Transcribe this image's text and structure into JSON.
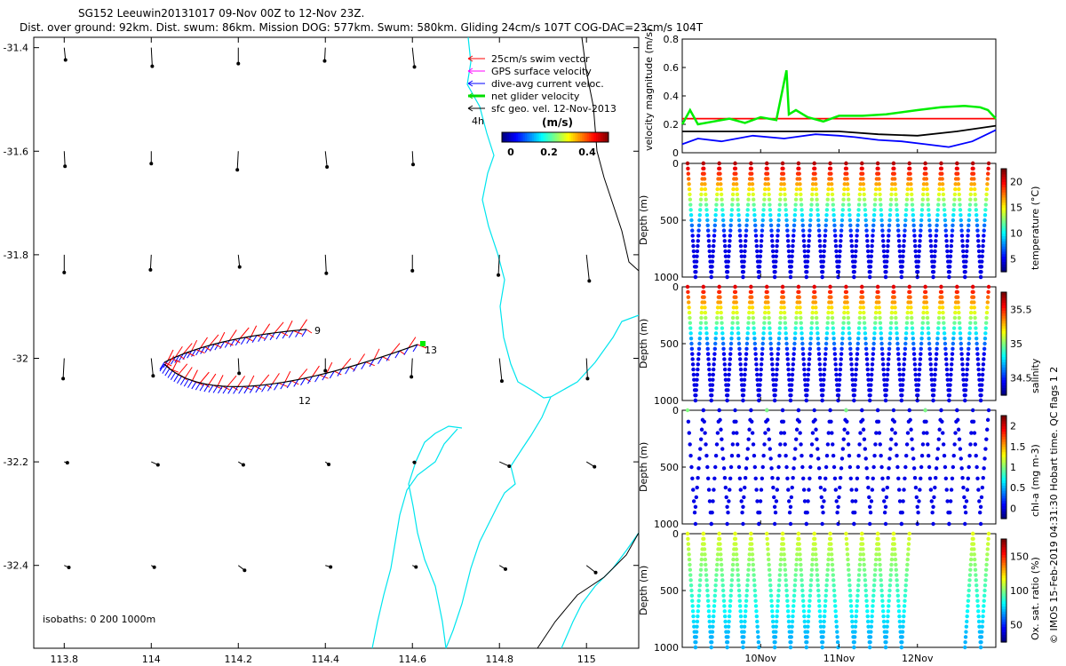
{
  "header": {
    "line1": "SG152 Leeuwin20131017 09-Nov 00Z to 12-Nov 23Z.",
    "line2": "Dist. over ground: 92km. Dist. swum: 86km. Mission DOG: 577km. Swum: 580km. Gliding 24cm/s 107T COG-DAC=23cm/s 104T"
  },
  "map": {
    "x_ticks": [
      "113.8",
      "114",
      "114.2",
      "114.4",
      "114.6",
      "114.8",
      "115"
    ],
    "y_ticks": [
      "-31.4",
      "-31.6",
      "-31.8",
      "-32",
      "-32.2",
      "-32.4"
    ],
    "xlim": [
      113.73,
      115.12
    ],
    "ylim": [
      -32.56,
      -31.38
    ],
    "isobaths_label": "isobaths: 0   200  1000m",
    "track_labels": [
      "9",
      "12",
      "13"
    ],
    "legend": [
      {
        "label": "25cm/s swim vector",
        "color": "#ff0000"
      },
      {
        "label": "GPS surface velocity",
        "color": "#ff00ff"
      },
      {
        "label": "dive-avg current veloc.",
        "color": "#0000ff"
      },
      {
        "label": "net glider velocity",
        "color": "#00dd00"
      },
      {
        "label": "sfc geo. vel. 12-Nov-2013",
        "color": "#000000"
      }
    ],
    "legend_note": "4h",
    "colorbar_title": "(m/s)",
    "colorbar_ticks": [
      "0",
      "0.2",
      "0.4"
    ]
  },
  "chart_data": [
    {
      "type": "line",
      "ylabel": "velocity magnitude (m/s)",
      "ylim": [
        0,
        0.8
      ],
      "y_ticks": [
        "0",
        "0.2",
        "0.4",
        "0.6",
        "0.8"
      ],
      "series": [
        {
          "color": "#ff0000",
          "x": [
            0,
            4
          ],
          "y": [
            0.24,
            0.24
          ]
        },
        {
          "color": "#000000",
          "x": [
            0,
            1,
            2,
            2.5,
            3,
            3.5,
            4
          ],
          "y": [
            0.15,
            0.15,
            0.15,
            0.13,
            0.12,
            0.15,
            0.19
          ]
        },
        {
          "color": "#0000ff",
          "x": [
            0,
            0.2,
            0.5,
            0.9,
            1.3,
            1.7,
            2.0,
            2.2,
            2.5,
            2.8,
            3.1,
            3.4,
            3.7,
            4.0
          ],
          "y": [
            0.06,
            0.1,
            0.08,
            0.12,
            0.1,
            0.13,
            0.12,
            0.11,
            0.09,
            0.08,
            0.06,
            0.04,
            0.08,
            0.16
          ]
        },
        {
          "color": "#00ee00",
          "x": [
            0,
            0.1,
            0.2,
            0.4,
            0.6,
            0.8,
            1.0,
            1.2,
            1.33,
            1.36,
            1.45,
            1.6,
            1.8,
            2.0,
            2.3,
            2.6,
            3.0,
            3.3,
            3.6,
            3.8,
            3.9,
            4.0
          ],
          "y": [
            0.2,
            0.3,
            0.2,
            0.22,
            0.24,
            0.21,
            0.25,
            0.23,
            0.58,
            0.27,
            0.3,
            0.25,
            0.22,
            0.26,
            0.26,
            0.27,
            0.3,
            0.32,
            0.33,
            0.32,
            0.3,
            0.24
          ]
        }
      ]
    },
    {
      "type": "scatter",
      "ylabel": "Depth (m)",
      "colorbar_label": "temperature (°C)",
      "colorbar_ticks": [
        "5",
        "10",
        "15",
        "20"
      ],
      "y_ticks": [
        "0",
        "500",
        "1000"
      ],
      "ylim": [
        1000,
        0
      ],
      "profile_max_depth": [
        1000,
        1000,
        1000,
        1000,
        1000,
        1000,
        1000,
        1000,
        1000,
        1000,
        1000,
        1000,
        1000,
        1000,
        1000,
        1000,
        1000,
        1000,
        1000,
        1000,
        1000,
        1000,
        1000,
        1000,
        1000,
        1000,
        1000,
        1000,
        1000,
        1000,
        1000,
        1000,
        1000,
        1000,
        1000,
        1000,
        1000,
        1000,
        1000,
        1000,
        1000,
        1000,
        1000,
        1000,
        1000,
        1000,
        1000,
        1000,
        1000,
        1000,
        1000,
        1000,
        1000,
        1000,
        1000,
        1000,
        1000,
        1000,
        1000,
        1000,
        1000,
        1000,
        1000,
        1000,
        1000,
        1000,
        1000,
        1000,
        1000,
        1000,
        1000,
        1000,
        1000,
        1000,
        1000,
        1000,
        1000,
        1000,
        1000,
        1000
      ],
      "palette": "jet"
    },
    {
      "type": "scatter",
      "ylabel": "Depth (m)",
      "colorbar_label": "salinity",
      "colorbar_ticks": [
        "34.5",
        "35",
        "35.5"
      ],
      "y_ticks": [
        "0",
        "500",
        "1000"
      ],
      "ylim": [
        1000,
        0
      ],
      "palette": "jet"
    },
    {
      "type": "scatter",
      "ylabel": "Depth (m)",
      "colorbar_label": "chl-a (mg m-3)",
      "colorbar_ticks": [
        "0",
        "0.5",
        "1",
        "1.5",
        "2"
      ],
      "y_ticks": [
        "0",
        "500",
        "1000"
      ],
      "ylim": [
        1000,
        0
      ],
      "palette": "jet"
    },
    {
      "type": "scatter",
      "ylabel": "Depth (m)",
      "colorbar_label": "Ox. sat. ratio (%)",
      "colorbar_ticks": [
        "50",
        "100",
        "150"
      ],
      "y_ticks": [
        "0",
        "500",
        "1000"
      ],
      "ylim": [
        1000,
        0
      ],
      "x_ticks": [
        "10Nov",
        "11Nov",
        "12Nov"
      ],
      "palette": "jet"
    }
  ],
  "side_note": "© IMOS 15-Feb-2019 04:31:30 Hobart time. QC flags 1  2",
  "colors": {
    "coast": "#00e5ee",
    "track_red": "#ff0000",
    "track_blue": "#0000ff",
    "green": "#00ee00"
  }
}
